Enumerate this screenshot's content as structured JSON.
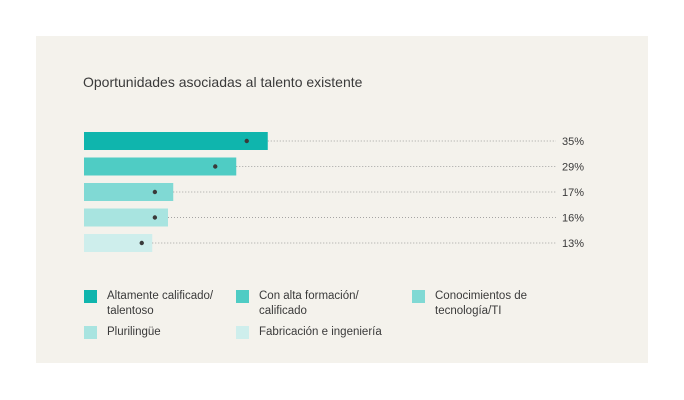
{
  "chart_data": {
    "type": "bar",
    "orientation": "horizontal",
    "title": "Oportunidades asociadas al talento existente",
    "xlim": [
      0,
      100
    ],
    "grid": false,
    "legend_position": "bottom",
    "value_labels": [
      "35%",
      "29%",
      "17%",
      "16%",
      "13%"
    ],
    "series": [
      {
        "name": "Altamente calificado/ talentoso",
        "value": 35,
        "marker": 31,
        "color": "#0fb5ad"
      },
      {
        "name": "Con alta formación/ calificado",
        "value": 29,
        "marker": 25,
        "color": "#4fccc4"
      },
      {
        "name": "Conocimientos de tecnología/TI",
        "value": 17,
        "marker": 13.5,
        "color": "#80d9d4"
      },
      {
        "name": "Plurilingüe",
        "value": 16,
        "marker": 13.5,
        "color": "#a8e4e0"
      },
      {
        "name": "Fabricación e ingeniería",
        "value": 13,
        "marker": 11,
        "color": "#ceeeec"
      }
    ]
  }
}
